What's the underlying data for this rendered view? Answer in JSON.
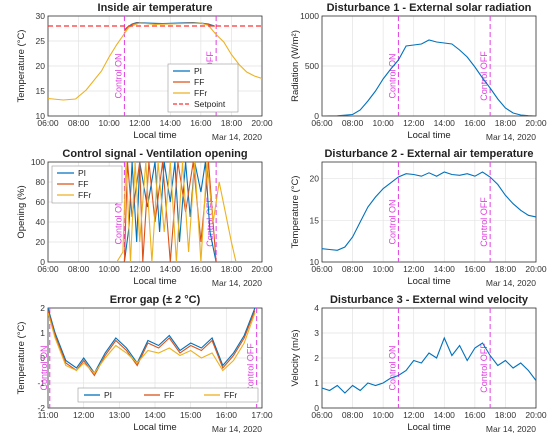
{
  "chart_data": [
    {
      "type": "line",
      "title": "Inside air temperature",
      "xlabel": "Local time",
      "ylabel": "Temperature (°C)",
      "date_label": "Mar 14, 2020",
      "xticks": [
        "06:00",
        "08:00",
        "10:00",
        "12:00",
        "14:00",
        "16:00",
        "18:00",
        "20:00"
      ],
      "xlim": [
        6,
        20
      ],
      "ylim": [
        10,
        30
      ],
      "yticks": [
        10,
        15,
        20,
        25,
        30
      ],
      "annotations": [
        "Control ON",
        "Control OFF"
      ],
      "annotation_x": [
        11.0,
        17.0
      ],
      "legend": "inside-right",
      "setpoint": 28,
      "series": [
        {
          "name": "PI",
          "color": "#0072BD",
          "x": [
            11.0,
            11.2,
            11.5,
            11.8,
            12.5,
            13.5,
            14.5,
            15.5,
            16.0,
            16.5,
            16.9
          ],
          "y": [
            27.2,
            27.8,
            28.4,
            28.7,
            28.6,
            28.5,
            28.6,
            28.7,
            28.6,
            28.4,
            28.0
          ]
        },
        {
          "name": "FF",
          "color": "#D95319",
          "x": [
            11.0,
            11.2,
            11.5,
            11.8,
            12.5,
            13.5,
            14.5,
            15.5,
            16.0,
            16.5,
            16.9
          ],
          "y": [
            27.0,
            27.7,
            28.3,
            28.6,
            28.5,
            28.4,
            28.5,
            28.6,
            28.5,
            28.3,
            27.9
          ]
        },
        {
          "name": "FFr",
          "color": "#EDB120",
          "x": [
            6.0,
            7.0,
            7.8,
            8.5,
            9.5,
            10.0,
            10.5,
            10.8,
            11.0,
            11.3,
            12.0,
            13.0,
            14.0,
            15.0,
            16.0,
            16.5,
            17.0,
            17.5,
            18.0,
            18.5,
            19.0,
            19.5,
            20.0
          ],
          "y": [
            13.5,
            13.2,
            13.4,
            15.2,
            19.0,
            21.8,
            24.3,
            25.6,
            26.5,
            27.8,
            28.6,
            28.3,
            28.4,
            28.5,
            28.6,
            28.1,
            26.3,
            24.8,
            22.3,
            20.3,
            18.8,
            18.0,
            17.5
          ]
        },
        {
          "name": "Setpoint",
          "color": "#ff3030",
          "dashed": true,
          "x": [
            6,
            20
          ],
          "y": [
            28,
            28
          ]
        }
      ]
    },
    {
      "type": "line",
      "title": "Disturbance 1 - External solar radiation",
      "xlabel": "Local time",
      "ylabel": "Radiation (W/m²)",
      "date_label": "Mar 14, 2020",
      "xticks": [
        "06:00",
        "08:00",
        "10:00",
        "12:00",
        "14:00",
        "16:00",
        "18:00",
        "20:00"
      ],
      "xlim": [
        6,
        20
      ],
      "ylim": [
        0,
        1000
      ],
      "yticks": [
        0,
        500,
        1000
      ],
      "annotations": [
        "Control ON",
        "Control OFF"
      ],
      "annotation_x": [
        11.0,
        17.0
      ],
      "series": [
        {
          "name": "Radiation",
          "color": "#0072BD",
          "x": [
            6.0,
            7.0,
            8.0,
            8.5,
            9.0,
            9.5,
            10.0,
            10.5,
            11.0,
            11.5,
            12.0,
            12.5,
            13.0,
            13.5,
            14.0,
            14.5,
            15.0,
            15.5,
            16.0,
            16.5,
            17.0,
            17.5,
            18.0,
            18.5,
            19.0,
            19.5,
            20.0
          ],
          "y": [
            0,
            2,
            15,
            60,
            150,
            250,
            370,
            470,
            560,
            700,
            710,
            720,
            760,
            740,
            730,
            720,
            660,
            590,
            490,
            380,
            280,
            170,
            80,
            30,
            10,
            3,
            0
          ]
        }
      ]
    },
    {
      "type": "line",
      "title": "Control signal - Ventilation opening",
      "xlabel": "Local time",
      "ylabel": "Opening (%)",
      "date_label": "Mar 14, 2020",
      "xticks": [
        "06:00",
        "08:00",
        "10:00",
        "12:00",
        "14:00",
        "16:00",
        "18:00",
        "20:00"
      ],
      "xlim": [
        6,
        20
      ],
      "ylim": [
        0,
        100
      ],
      "yticks": [
        0,
        20,
        40,
        60,
        80,
        100
      ],
      "annotations": [
        "Control ON",
        "Control OFF"
      ],
      "annotation_x": [
        11.0,
        17.0
      ],
      "legend": "top-left",
      "series": [
        {
          "name": "PI",
          "color": "#0072BD",
          "x": [
            11.0,
            11.3,
            11.5,
            11.8,
            12.0,
            12.5,
            13.0,
            13.3,
            13.6,
            14.0,
            14.3,
            14.6,
            15.0,
            15.3,
            15.6,
            16.0,
            16.3,
            16.6,
            17.0
          ],
          "y": [
            0,
            35,
            100,
            20,
            100,
            55,
            100,
            30,
            100,
            60,
            100,
            20,
            100,
            45,
            100,
            70,
            100,
            30,
            0
          ]
        },
        {
          "name": "FF",
          "color": "#D95319",
          "x": [
            11.0,
            11.2,
            11.5,
            12.0,
            12.2,
            12.6,
            13.0,
            13.5,
            14.0,
            14.5,
            15.0,
            15.5,
            16.0,
            16.5,
            17.0
          ],
          "y": [
            0,
            100,
            45,
            100,
            0,
            100,
            40,
            100,
            0,
            100,
            50,
            100,
            20,
            100,
            0
          ]
        },
        {
          "name": "FFr",
          "color": "#EDB120",
          "x": [
            10.5,
            10.9,
            11.1,
            11.4,
            11.7,
            12.0,
            12.4,
            12.8,
            13.2,
            13.6,
            14.0,
            14.4,
            14.8,
            15.2,
            15.6,
            16.0,
            16.4,
            16.8,
            17.2,
            17.6,
            18.0,
            18.3
          ],
          "y": [
            0,
            10,
            100,
            0,
            100,
            20,
            100,
            0,
            100,
            30,
            100,
            0,
            100,
            10,
            100,
            0,
            100,
            40,
            80,
            50,
            20,
            0
          ]
        }
      ]
    },
    {
      "type": "line",
      "title": "Disturbance 2 - External air temperature",
      "xlabel": "Local time",
      "ylabel": "Temperature (°C)",
      "date_label": "Mar 14, 2020",
      "xticks": [
        "06:00",
        "08:00",
        "10:00",
        "12:00",
        "14:00",
        "16:00",
        "18:00",
        "20:00"
      ],
      "xlim": [
        6,
        20
      ],
      "ylim": [
        10,
        22
      ],
      "yticks": [
        10,
        15,
        20
      ],
      "annotations": [
        "Control ON",
        "Control OFF"
      ],
      "annotation_x": [
        11.0,
        17.0
      ],
      "series": [
        {
          "name": "Air temperature",
          "color": "#0072BD",
          "x": [
            6.0,
            6.5,
            7.0,
            7.5,
            8.0,
            8.5,
            9.0,
            9.5,
            10.0,
            10.5,
            11.0,
            11.5,
            12.0,
            12.5,
            13.0,
            13.5,
            14.0,
            14.5,
            15.0,
            15.5,
            16.0,
            16.5,
            17.0,
            17.5,
            18.0,
            18.5,
            19.0,
            19.5,
            20.0
          ],
          "y": [
            11.6,
            11.5,
            11.4,
            11.8,
            13.0,
            14.8,
            16.6,
            17.8,
            18.8,
            19.5,
            20.2,
            20.6,
            20.5,
            20.3,
            20.7,
            20.3,
            20.8,
            20.5,
            20.4,
            20.6,
            20.3,
            20.8,
            20.2,
            19.3,
            18.0,
            17.0,
            16.2,
            15.6,
            15.4
          ]
        }
      ]
    },
    {
      "type": "line",
      "title": "Error gap (± 2 °C)",
      "xlabel": "Local time",
      "ylabel": "Temperature (°C)",
      "date_label": "Mar 14, 2020",
      "xticks": [
        "11:00",
        "12:00",
        "13:00",
        "14:00",
        "15:00",
        "16:00",
        "17:00"
      ],
      "xlim": [
        11,
        17
      ],
      "ylim": [
        -2,
        2
      ],
      "yticks": [
        -2,
        -1,
        0,
        1,
        2
      ],
      "annotations": [
        "Control ON",
        "Control OFF"
      ],
      "annotation_x": [
        11.05,
        16.85
      ],
      "legend": "bottom",
      "series": [
        {
          "name": "PI",
          "color": "#0072BD",
          "x": [
            11.0,
            11.2,
            11.5,
            11.8,
            12.0,
            12.3,
            12.6,
            12.9,
            13.2,
            13.5,
            13.8,
            14.1,
            14.4,
            14.7,
            15.0,
            15.3,
            15.6,
            15.9,
            16.2,
            16.5,
            16.8
          ],
          "y": [
            2.0,
            1.0,
            -0.1,
            -0.4,
            0.0,
            -0.6,
            0.2,
            0.8,
            0.4,
            -0.2,
            0.7,
            0.5,
            0.9,
            0.3,
            0.6,
            0.4,
            0.8,
            -0.3,
            0.2,
            0.9,
            2.0
          ]
        },
        {
          "name": "FF",
          "color": "#D95319",
          "x": [
            11.0,
            11.2,
            11.5,
            11.8,
            12.0,
            12.3,
            12.6,
            12.9,
            13.2,
            13.5,
            13.8,
            14.1,
            14.4,
            14.7,
            15.0,
            15.3,
            15.6,
            15.9,
            16.2,
            16.5,
            16.8
          ],
          "y": [
            1.9,
            0.9,
            -0.2,
            -0.5,
            -0.1,
            -0.7,
            0.1,
            0.7,
            0.3,
            -0.3,
            0.6,
            0.4,
            0.8,
            0.2,
            0.5,
            0.3,
            0.7,
            -0.4,
            0.1,
            0.8,
            1.9
          ]
        },
        {
          "name": "FFr",
          "color": "#EDB120",
          "x": [
            11.0,
            11.2,
            11.5,
            11.8,
            12.0,
            12.3,
            12.6,
            12.9,
            13.2,
            13.5,
            13.8,
            14.1,
            14.4,
            14.7,
            15.0,
            15.3,
            15.6,
            15.9,
            16.2,
            16.5,
            16.8
          ],
          "y": [
            1.8,
            0.8,
            -0.3,
            -0.5,
            -0.2,
            -0.6,
            0.0,
            0.5,
            0.2,
            -0.2,
            0.3,
            0.2,
            0.4,
            0.1,
            0.3,
            0.0,
            0.2,
            -0.5,
            -0.1,
            0.6,
            1.8
          ]
        }
      ]
    },
    {
      "type": "line",
      "title": "Disturbance 3 - External wind velocity",
      "xlabel": "Local time",
      "ylabel": "Velocity (m/s)",
      "date_label": "Mar 14, 2020",
      "xticks": [
        "06:00",
        "08:00",
        "10:00",
        "12:00",
        "14:00",
        "16:00",
        "18:00",
        "20:00"
      ],
      "xlim": [
        6,
        20
      ],
      "ylim": [
        0,
        4
      ],
      "yticks": [
        0,
        1,
        2,
        3,
        4
      ],
      "annotations": [
        "Control ON",
        "Control OFF"
      ],
      "annotation_x": [
        11.0,
        17.0
      ],
      "series": [
        {
          "name": "Wind velocity",
          "color": "#0072BD",
          "x": [
            6.0,
            6.5,
            7.0,
            7.5,
            8.0,
            8.5,
            9.0,
            9.5,
            10.0,
            10.5,
            11.0,
            11.5,
            12.0,
            12.5,
            13.0,
            13.5,
            14.0,
            14.5,
            15.0,
            15.5,
            16.0,
            16.5,
            17.0,
            17.5,
            18.0,
            18.5,
            19.0,
            19.5,
            20.0
          ],
          "y": [
            0.8,
            0.7,
            0.9,
            0.6,
            0.9,
            0.7,
            1.0,
            0.9,
            1.0,
            1.2,
            1.3,
            1.5,
            1.9,
            1.8,
            2.2,
            2.0,
            2.8,
            2.1,
            2.5,
            1.9,
            2.4,
            2.6,
            2.1,
            1.7,
            1.9,
            1.6,
            1.8,
            1.5,
            1.1
          ]
        }
      ]
    }
  ]
}
